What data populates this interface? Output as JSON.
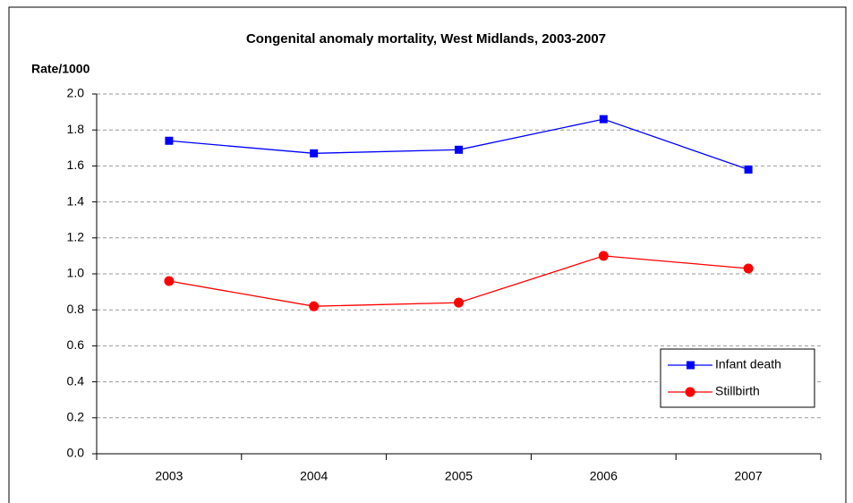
{
  "chart_data": {
    "type": "line",
    "title": "Congenital anomaly mortality, West Midlands, 2003-2007",
    "ylabel": "Rate/1000",
    "categories": [
      "2003",
      "2004",
      "2005",
      "2006",
      "2007"
    ],
    "series": [
      {
        "name": "Infant death",
        "color": "#0000ff",
        "marker": "square",
        "values": [
          1.74,
          1.67,
          1.69,
          1.86,
          1.58
        ]
      },
      {
        "name": "Stillbirth",
        "color": "#ff0000",
        "marker": "circle",
        "values": [
          0.96,
          0.82,
          0.84,
          1.1,
          1.03
        ]
      }
    ],
    "ylim": [
      0,
      2
    ],
    "yticks": [
      {
        "value": 0,
        "label": "0.0"
      },
      {
        "value": 0.2,
        "label": "0.2"
      },
      {
        "value": 0.4,
        "label": "0.4"
      },
      {
        "value": 0.6,
        "label": "0.6"
      },
      {
        "value": 0.8,
        "label": "0.8"
      },
      {
        "value": 1,
        "label": "1.0"
      },
      {
        "value": 1.2,
        "label": "1.2"
      },
      {
        "value": 1.4,
        "label": "1.4"
      },
      {
        "value": 1.6,
        "label": "1.6"
      },
      {
        "value": 1.8,
        "label": "1.8"
      },
      {
        "value": 2,
        "label": "2.0"
      }
    ],
    "grid": true,
    "legend": "lower right"
  }
}
